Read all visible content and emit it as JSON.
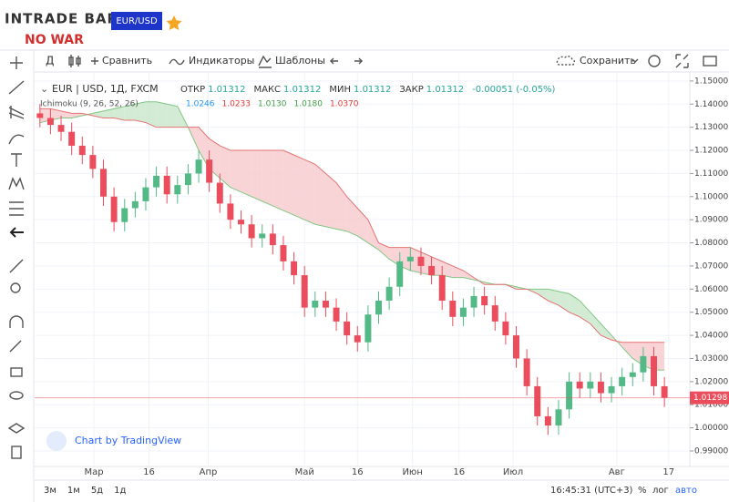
{
  "header": {
    "logo": "INTRADE BAR",
    "banner": "NO WAR",
    "pair_button": "EUR/USD"
  },
  "toolbar": {
    "interval": "Д",
    "compare": "Сравнить",
    "indicators": "Индикаторы",
    "templates": "Шаблоны",
    "save": "Сохранить"
  },
  "legend": {
    "symbol": "EUR | USD, 1Д, FXCM",
    "fields": [
      {
        "label": "ОТКР",
        "value": "1.01312"
      },
      {
        "label": "МАКС",
        "value": "1.01312"
      },
      {
        "label": "МИН",
        "value": "1.01312"
      },
      {
        "label": "ЗАКР",
        "value": "1.01312"
      }
    ],
    "change": "-0.00051 (-0.05%)",
    "ichimoku": {
      "label": "Ichimoku (9, 26, 52, 26)",
      "values": [
        {
          "text": "1.0246",
          "color": "#2196f3"
        },
        {
          "text": "1.0233",
          "color": "#e53935"
        },
        {
          "text": "1.0130",
          "color": "#43a047"
        },
        {
          "text": "1.0180",
          "color": "#43a047"
        },
        {
          "text": "1.0370",
          "color": "#e53935"
        }
      ]
    }
  },
  "watermark": "Chart by TradingView",
  "footer": {
    "ranges": [
      "3м",
      "1м",
      "5д",
      "1д"
    ],
    "clock": "16:45:31 (UTC+3)",
    "options": [
      "%",
      "лог",
      "авто"
    ]
  },
  "chart_data": {
    "type": "candlestick",
    "up_color": "#53b987",
    "down_color": "#eb4d5c",
    "open": [
      1.136,
      1.134,
      1.131,
      1.128,
      1.122,
      1.118,
      1.112,
      1.1,
      1.089,
      1.095,
      1.098,
      1.104,
      1.109,
      1.101,
      1.105,
      1.11,
      1.116,
      1.106,
      1.097,
      1.09,
      1.088,
      1.082,
      1.084,
      1.079,
      1.072,
      1.066,
      1.052,
      1.055,
      1.052,
      1.046,
      1.04,
      1.037,
      1.049,
      1.055,
      1.061,
      1.072,
      1.074,
      1.07,
      1.066,
      1.055,
      1.048,
      1.052,
      1.057,
      1.053,
      1.046,
      1.04,
      1.03,
      1.018,
      1.005,
      1.001,
      1.008,
      1.02,
      1.017,
      1.02,
      1.015,
      1.018,
      1.022,
      1.024,
      1.031,
      1.018
    ],
    "high": [
      1.14,
      1.138,
      1.135,
      1.132,
      1.126,
      1.122,
      1.116,
      1.104,
      1.099,
      1.102,
      1.108,
      1.113,
      1.113,
      1.109,
      1.114,
      1.12,
      1.12,
      1.11,
      1.101,
      1.094,
      1.092,
      1.088,
      1.088,
      1.083,
      1.076,
      1.07,
      1.059,
      1.059,
      1.056,
      1.05,
      1.044,
      1.053,
      1.059,
      1.065,
      1.076,
      1.078,
      1.078,
      1.074,
      1.07,
      1.059,
      1.056,
      1.061,
      1.061,
      1.057,
      1.05,
      1.044,
      1.034,
      1.022,
      1.009,
      1.012,
      1.024,
      1.024,
      1.024,
      1.024,
      1.022,
      1.026,
      1.028,
      1.035,
      1.035,
      1.022
    ],
    "low": [
      1.13,
      1.127,
      1.124,
      1.118,
      1.114,
      1.108,
      1.096,
      1.085,
      1.085,
      1.091,
      1.094,
      1.1,
      1.097,
      1.097,
      1.101,
      1.106,
      1.102,
      1.093,
      1.086,
      1.084,
      1.078,
      1.078,
      1.075,
      1.068,
      1.062,
      1.048,
      1.048,
      1.048,
      1.042,
      1.036,
      1.033,
      1.033,
      1.045,
      1.051,
      1.057,
      1.068,
      1.066,
      1.062,
      1.051,
      1.044,
      1.044,
      1.048,
      1.049,
      1.042,
      1.036,
      1.026,
      1.014,
      1.001,
      0.997,
      0.997,
      1.004,
      1.013,
      1.013,
      1.011,
      1.011,
      1.014,
      1.018,
      1.02,
      1.014,
      1.009
    ],
    "close": [
      1.134,
      1.131,
      1.128,
      1.122,
      1.118,
      1.112,
      1.1,
      1.089,
      1.095,
      1.098,
      1.104,
      1.109,
      1.101,
      1.105,
      1.11,
      1.116,
      1.106,
      1.097,
      1.09,
      1.088,
      1.082,
      1.084,
      1.079,
      1.072,
      1.066,
      1.052,
      1.055,
      1.052,
      1.046,
      1.04,
      1.037,
      1.049,
      1.055,
      1.061,
      1.072,
      1.074,
      1.07,
      1.066,
      1.055,
      1.048,
      1.052,
      1.057,
      1.053,
      1.046,
      1.04,
      1.03,
      1.018,
      1.005,
      1.001,
      1.008,
      1.02,
      1.017,
      1.02,
      1.015,
      1.018,
      1.022,
      1.024,
      1.031,
      1.018,
      1.013
    ],
    "cloud": {
      "lead_a_color": "#81c784",
      "lead_b_color": "#e57373",
      "up_fill": "#c8e6c9",
      "down_fill": "#f8c9cc",
      "lead_a": [
        1.132,
        1.133,
        1.134,
        1.134,
        1.135,
        1.136,
        1.137,
        1.138,
        1.139,
        1.14,
        1.141,
        1.141,
        1.14,
        1.139,
        1.13,
        1.12,
        1.112,
        1.108,
        1.104,
        1.102,
        1.1,
        1.098,
        1.096,
        1.094,
        1.092,
        1.09,
        1.088,
        1.087,
        1.086,
        1.085,
        1.083,
        1.08,
        1.077,
        1.073,
        1.07,
        1.068,
        1.067,
        1.066,
        1.066,
        1.065,
        1.065,
        1.064,
        1.063,
        1.062,
        1.062,
        1.061,
        1.06,
        1.06,
        1.06,
        1.059,
        1.058,
        1.055,
        1.05,
        1.045,
        1.04,
        1.035,
        1.03,
        1.027,
        1.025,
        1.025
      ],
      "lead_b": [
        1.138,
        1.138,
        1.137,
        1.136,
        1.136,
        1.135,
        1.134,
        1.134,
        1.133,
        1.133,
        1.132,
        1.13,
        1.13,
        1.13,
        1.13,
        1.13,
        1.125,
        1.122,
        1.12,
        1.12,
        1.12,
        1.12,
        1.12,
        1.12,
        1.118,
        1.116,
        1.114,
        1.11,
        1.106,
        1.1,
        1.095,
        1.09,
        1.08,
        1.078,
        1.078,
        1.078,
        1.076,
        1.074,
        1.072,
        1.07,
        1.068,
        1.065,
        1.062,
        1.062,
        1.062,
        1.06,
        1.06,
        1.058,
        1.055,
        1.053,
        1.05,
        1.048,
        1.045,
        1.04,
        1.038,
        1.037,
        1.037,
        1.037,
        1.037,
        1.037
      ]
    },
    "last_price": {
      "value": 1.01298,
      "label": "1.01298",
      "color": "#eb4d5c"
    },
    "ylim": [
      0.9833,
      1.1535
    ],
    "yticks": [
      {
        "value": 0.99,
        "label": "0.99000"
      },
      {
        "value": 1.0,
        "label": "1.00000"
      },
      {
        "value": 1.01,
        "label": "1.01000"
      },
      {
        "value": 1.02,
        "label": "1.02000"
      },
      {
        "value": 1.03,
        "label": "1.03000"
      },
      {
        "value": 1.04,
        "label": "1.04000"
      },
      {
        "value": 1.05,
        "label": "1.05000"
      },
      {
        "value": 1.06,
        "label": "1.06000"
      },
      {
        "value": 1.07,
        "label": "1.07000"
      },
      {
        "value": 1.08,
        "label": "1.08000"
      },
      {
        "value": 1.09,
        "label": "1.09000"
      },
      {
        "value": 1.1,
        "label": "1.10000"
      },
      {
        "value": 1.11,
        "label": "1.11000"
      },
      {
        "value": 1.12,
        "label": "1.12000"
      },
      {
        "value": 1.13,
        "label": "1.13000"
      },
      {
        "value": 1.14,
        "label": "1.14000"
      },
      {
        "value": 1.15,
        "label": "1.15000"
      }
    ],
    "xlim": [
      -0.5,
      61.4
    ],
    "xticks": [
      {
        "value": 5.1,
        "label": "Мар"
      },
      {
        "value": 10.3,
        "label": "16"
      },
      {
        "value": 15.9,
        "label": "Апр"
      },
      {
        "value": 25,
        "label": "Май"
      },
      {
        "value": 30,
        "label": "16"
      },
      {
        "value": 35.2,
        "label": "Июн"
      },
      {
        "value": 39.6,
        "label": "16"
      },
      {
        "value": 44.7,
        "label": "Июл"
      },
      {
        "value": 54.5,
        "label": "Авг"
      },
      {
        "value": 59.4,
        "label": "17"
      }
    ],
    "grid": true
  }
}
